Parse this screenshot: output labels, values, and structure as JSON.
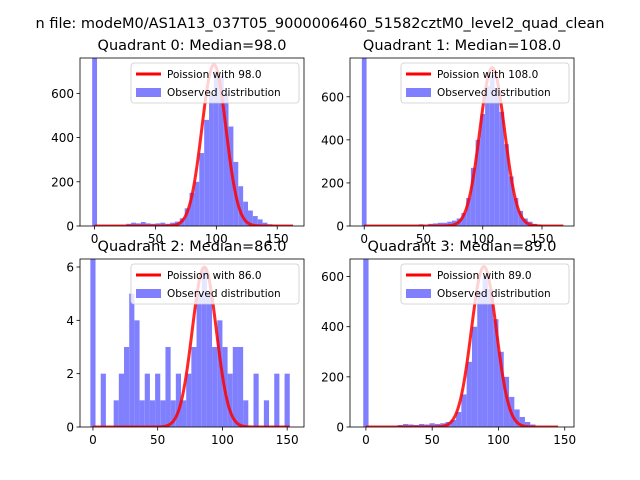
{
  "figure": {
    "suptitle": "n file: modeM0/AS1A13_037T05_9000006460_51582cztM0_level2_quad_clean"
  },
  "colors": {
    "observed": "#8080ff",
    "poisson": "#ff0000",
    "axis": "#000000",
    "background": "#ffffff"
  },
  "chart_data": [
    {
      "type": "bar",
      "title": "Quadrant 0: Median=98.0",
      "xlim": [
        -12,
        172
      ],
      "ylim": [
        0,
        760
      ],
      "xticks": [
        0,
        50,
        100,
        150
      ],
      "yticks": [
        0,
        200,
        400,
        600
      ],
      "legend": {
        "position": "top-right",
        "line_label": "Poission with 98.0",
        "bar_label": "Observed distribution"
      },
      "poisson_mean": 98.0,
      "poisson_peak": 730,
      "poisson_sigma": 9.9,
      "poisson_x_range": [
        0,
        163
      ],
      "bin_width": 4,
      "bins": [
        {
          "x": 0,
          "y": 760
        },
        {
          "x": 28,
          "y": 10
        },
        {
          "x": 32,
          "y": 15
        },
        {
          "x": 36,
          "y": 12
        },
        {
          "x": 40,
          "y": 18
        },
        {
          "x": 44,
          "y": 12
        },
        {
          "x": 48,
          "y": 10
        },
        {
          "x": 52,
          "y": 12
        },
        {
          "x": 56,
          "y": 15
        },
        {
          "x": 60,
          "y": 10
        },
        {
          "x": 64,
          "y": 15
        },
        {
          "x": 68,
          "y": 20
        },
        {
          "x": 72,
          "y": 35
        },
        {
          "x": 76,
          "y": 80
        },
        {
          "x": 80,
          "y": 150
        },
        {
          "x": 84,
          "y": 200
        },
        {
          "x": 88,
          "y": 330
        },
        {
          "x": 92,
          "y": 480
        },
        {
          "x": 96,
          "y": 600
        },
        {
          "x": 100,
          "y": 700
        },
        {
          "x": 104,
          "y": 680
        },
        {
          "x": 108,
          "y": 600
        },
        {
          "x": 112,
          "y": 450
        },
        {
          "x": 116,
          "y": 290
        },
        {
          "x": 120,
          "y": 180
        },
        {
          "x": 124,
          "y": 110
        },
        {
          "x": 128,
          "y": 70
        },
        {
          "x": 132,
          "y": 45
        },
        {
          "x": 136,
          "y": 30
        },
        {
          "x": 140,
          "y": 15
        },
        {
          "x": 144,
          "y": 8
        },
        {
          "x": 148,
          "y": 5
        }
      ]
    },
    {
      "type": "bar",
      "title": "Quadrant 1: Median=108.0",
      "xlim": [
        -12,
        177
      ],
      "ylim": [
        0,
        780
      ],
      "xticks": [
        0,
        50,
        100,
        150
      ],
      "yticks": [
        0,
        200,
        400,
        600
      ],
      "legend": {
        "position": "top-right",
        "line_label": "Poission with 108.0",
        "bar_label": "Observed distribution"
      },
      "poisson_mean": 108.0,
      "poisson_peak": 735,
      "poisson_sigma": 10.4,
      "poisson_x_range": [
        0,
        168
      ],
      "bin_width": 4,
      "bins": [
        {
          "x": 0,
          "y": 780
        },
        {
          "x": 48,
          "y": 8
        },
        {
          "x": 56,
          "y": 10
        },
        {
          "x": 60,
          "y": 12
        },
        {
          "x": 64,
          "y": 15
        },
        {
          "x": 68,
          "y": 15
        },
        {
          "x": 72,
          "y": 20
        },
        {
          "x": 76,
          "y": 25
        },
        {
          "x": 80,
          "y": 35
        },
        {
          "x": 84,
          "y": 60
        },
        {
          "x": 88,
          "y": 130
        },
        {
          "x": 92,
          "y": 270
        },
        {
          "x": 96,
          "y": 400
        },
        {
          "x": 100,
          "y": 520
        },
        {
          "x": 104,
          "y": 650
        },
        {
          "x": 108,
          "y": 700
        },
        {
          "x": 112,
          "y": 640
        },
        {
          "x": 116,
          "y": 530
        },
        {
          "x": 120,
          "y": 380
        },
        {
          "x": 124,
          "y": 230
        },
        {
          "x": 128,
          "y": 130
        },
        {
          "x": 132,
          "y": 70
        },
        {
          "x": 136,
          "y": 35
        },
        {
          "x": 140,
          "y": 20
        },
        {
          "x": 144,
          "y": 10
        },
        {
          "x": 148,
          "y": 5
        }
      ]
    },
    {
      "type": "bar",
      "title": "Quadrant 2: Median=86.0",
      "xlim": [
        -10,
        163
      ],
      "ylim": [
        0,
        6.3
      ],
      "xticks": [
        0,
        50,
        100,
        150
      ],
      "yticks": [
        0,
        2,
        4,
        6
      ],
      "legend": {
        "position": "top-right",
        "line_label": "Poission with 86.0",
        "bar_label": "Observed distribution"
      },
      "poisson_mean": 86.0,
      "poisson_peak": 6.0,
      "poisson_sigma": 9.3,
      "poisson_x_range": [
        0,
        152
      ],
      "bin_width": 4,
      "bins": [
        {
          "x": 0,
          "y": 6.3
        },
        {
          "x": 8,
          "y": 2
        },
        {
          "x": 18,
          "y": 1
        },
        {
          "x": 22,
          "y": 2
        },
        {
          "x": 26,
          "y": 3
        },
        {
          "x": 30,
          "y": 5
        },
        {
          "x": 34,
          "y": 4
        },
        {
          "x": 38,
          "y": 1
        },
        {
          "x": 42,
          "y": 2
        },
        {
          "x": 46,
          "y": 1
        },
        {
          "x": 50,
          "y": 2
        },
        {
          "x": 54,
          "y": 1
        },
        {
          "x": 58,
          "y": 3
        },
        {
          "x": 62,
          "y": 1
        },
        {
          "x": 66,
          "y": 2
        },
        {
          "x": 70,
          "y": 1
        },
        {
          "x": 74,
          "y": 2
        },
        {
          "x": 78,
          "y": 3
        },
        {
          "x": 82,
          "y": 5
        },
        {
          "x": 86,
          "y": 6
        },
        {
          "x": 90,
          "y": 5
        },
        {
          "x": 94,
          "y": 3
        },
        {
          "x": 98,
          "y": 4
        },
        {
          "x": 102,
          "y": 3
        },
        {
          "x": 106,
          "y": 2
        },
        {
          "x": 110,
          "y": 3
        },
        {
          "x": 114,
          "y": 3
        },
        {
          "x": 118,
          "y": 1
        },
        {
          "x": 126,
          "y": 2
        },
        {
          "x": 134,
          "y": 1
        },
        {
          "x": 142,
          "y": 2
        },
        {
          "x": 150,
          "y": 2
        }
      ]
    },
    {
      "type": "bar",
      "title": "Quadrant 3: Median=89.0",
      "xlim": [
        -12,
        157
      ],
      "ylim": [
        0,
        670
      ],
      "xticks": [
        0,
        50,
        100,
        150
      ],
      "yticks": [
        0,
        200,
        400,
        600
      ],
      "legend": {
        "position": "top-right",
        "line_label": "Poission with 89.0",
        "bar_label": "Observed distribution"
      },
      "poisson_mean": 89.0,
      "poisson_peak": 640,
      "poisson_sigma": 9.4,
      "poisson_x_range": [
        0,
        145
      ],
      "bin_width": 4,
      "bins": [
        {
          "x": 0,
          "y": 670
        },
        {
          "x": 26,
          "y": 8
        },
        {
          "x": 30,
          "y": 12
        },
        {
          "x": 34,
          "y": 10
        },
        {
          "x": 38,
          "y": 8
        },
        {
          "x": 42,
          "y": 12
        },
        {
          "x": 46,
          "y": 10
        },
        {
          "x": 50,
          "y": 15
        },
        {
          "x": 54,
          "y": 12
        },
        {
          "x": 58,
          "y": 15
        },
        {
          "x": 62,
          "y": 20
        },
        {
          "x": 66,
          "y": 28
        },
        {
          "x": 70,
          "y": 60
        },
        {
          "x": 74,
          "y": 130
        },
        {
          "x": 78,
          "y": 260
        },
        {
          "x": 82,
          "y": 400
        },
        {
          "x": 86,
          "y": 540
        },
        {
          "x": 90,
          "y": 600
        },
        {
          "x": 94,
          "y": 550
        },
        {
          "x": 98,
          "y": 430
        },
        {
          "x": 102,
          "y": 300
        },
        {
          "x": 106,
          "y": 200
        },
        {
          "x": 110,
          "y": 120
        },
        {
          "x": 114,
          "y": 70
        },
        {
          "x": 118,
          "y": 40
        },
        {
          "x": 122,
          "y": 20
        },
        {
          "x": 126,
          "y": 10
        }
      ]
    }
  ]
}
